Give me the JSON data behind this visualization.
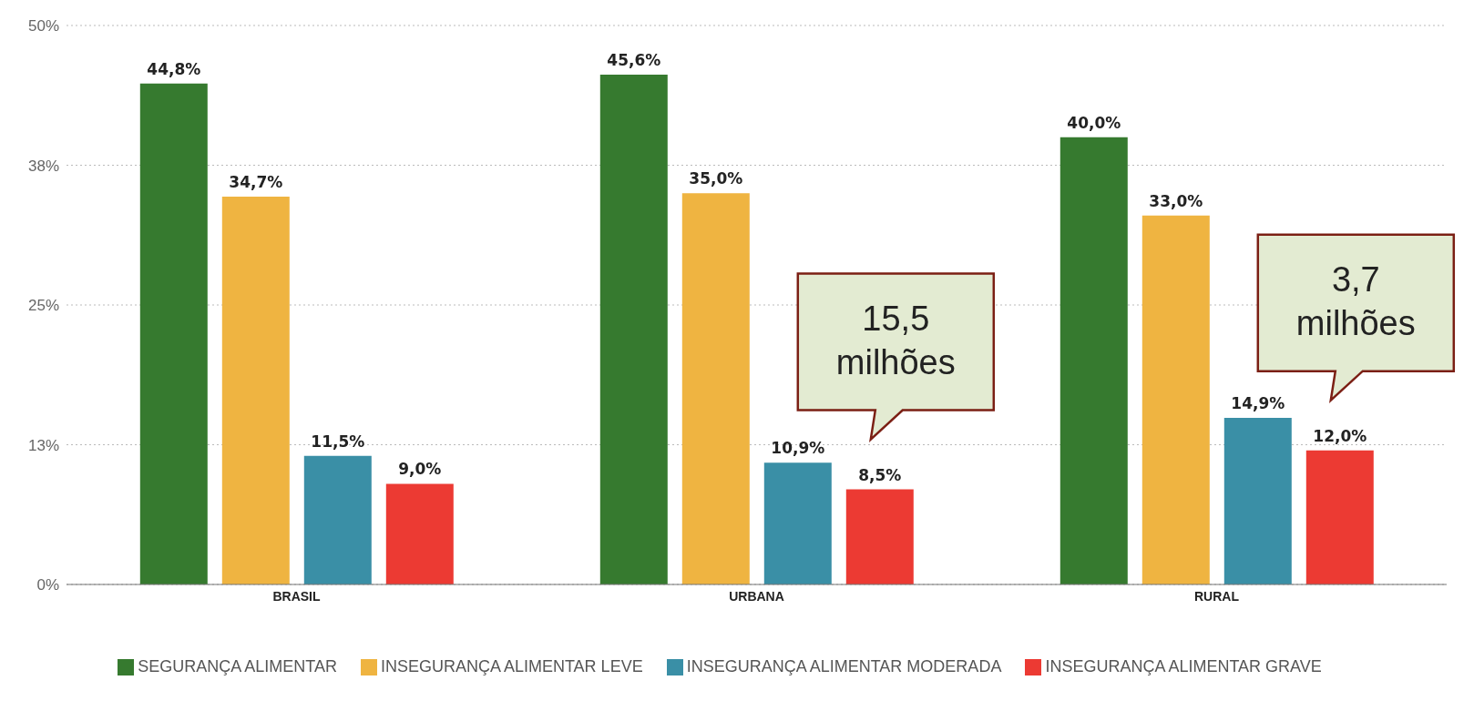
{
  "chart_data": {
    "type": "bar",
    "categories": [
      "BRASIL",
      "URBANA",
      "RURAL"
    ],
    "series": [
      {
        "name": "SEGURANÇA ALIMENTAR",
        "color": "#367a2f",
        "values": [
          44.8,
          45.6,
          40.0
        ],
        "value_labels": [
          "44,8%",
          "45,6%",
          "40,0%"
        ]
      },
      {
        "name": "INSEGURANÇA ALIMENTAR LEVE",
        "color": "#efb441",
        "values": [
          34.7,
          35.0,
          33.0
        ],
        "value_labels": [
          "34,7%",
          "35,0%",
          "33,0%"
        ]
      },
      {
        "name": "INSEGURANÇA ALIMENTAR MODERADA",
        "color": "#3a8fa6",
        "values": [
          11.5,
          10.9,
          14.9
        ],
        "value_labels": [
          "11,5%",
          "10,9%",
          "14,9%"
        ]
      },
      {
        "name": "INSEGURANÇA ALIMENTAR GRAVE",
        "color": "#ec3a33",
        "values": [
          9.0,
          8.5,
          12.0
        ],
        "value_labels": [
          "9,0%",
          "8,5%",
          "12,0%"
        ]
      }
    ],
    "ylim": [
      0,
      50
    ],
    "yticks": [
      {
        "value": 0,
        "label": "0%"
      },
      {
        "value": 12.5,
        "label": "13%"
      },
      {
        "value": 25,
        "label": "25%"
      },
      {
        "value": 37.5,
        "label": "38%"
      },
      {
        "value": 50,
        "label": "50%"
      }
    ],
    "grid": "y",
    "legend": "bottom",
    "annotations": [
      "15,5 milhões",
      "3,7 milhões"
    ]
  }
}
